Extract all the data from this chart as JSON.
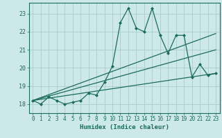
{
  "title": "",
  "xlabel": "Humidex (Indice chaleur)",
  "ylabel": "",
  "bg_color": "#cce8e8",
  "line_color": "#1a6b5a",
  "grid_color": "#b0d0d0",
  "xlim": [
    -0.5,
    23.5
  ],
  "ylim": [
    17.5,
    23.6
  ],
  "xticks": [
    0,
    1,
    2,
    3,
    4,
    5,
    6,
    7,
    8,
    9,
    10,
    11,
    12,
    13,
    14,
    15,
    16,
    17,
    18,
    19,
    20,
    21,
    22,
    23
  ],
  "yticks": [
    18,
    19,
    20,
    21,
    22,
    23
  ],
  "series1_x": [
    0,
    1,
    2,
    3,
    4,
    5,
    6,
    7,
    8,
    9,
    10,
    11,
    12,
    13,
    14,
    15,
    16,
    17,
    18,
    19,
    20,
    21,
    22,
    23
  ],
  "series1_y": [
    18.2,
    18.0,
    18.4,
    18.2,
    18.0,
    18.1,
    18.2,
    18.6,
    18.5,
    19.2,
    20.1,
    22.5,
    23.3,
    22.2,
    22.0,
    23.3,
    21.8,
    20.8,
    21.8,
    21.8,
    19.5,
    20.2,
    19.6,
    19.7
  ],
  "line1_x": [
    0,
    23
  ],
  "line1_y": [
    18.2,
    21.9
  ],
  "line2_x": [
    0,
    23
  ],
  "line2_y": [
    18.2,
    21.0
  ],
  "line3_x": [
    0,
    23
  ],
  "line3_y": [
    18.2,
    19.7
  ]
}
